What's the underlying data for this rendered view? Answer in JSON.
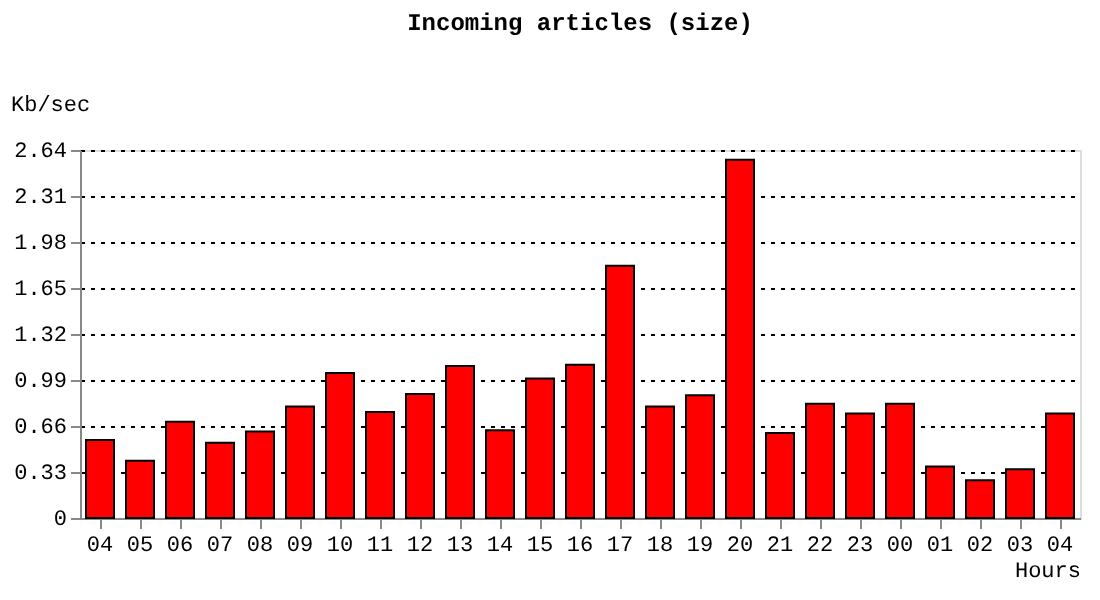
{
  "chart_data": {
    "type": "bar",
    "title": "Incoming articles (size)",
    "xlabel": "Hours",
    "ylabel": "Kb/sec",
    "categories": [
      "04",
      "05",
      "06",
      "07",
      "08",
      "09",
      "10",
      "11",
      "12",
      "13",
      "14",
      "15",
      "16",
      "17",
      "18",
      "19",
      "20",
      "21",
      "22",
      "23",
      "00",
      "01",
      "02",
      "03",
      "04"
    ],
    "series": [
      {
        "color": "#ff0000",
        "values": [
          0.56,
          0.41,
          0.69,
          0.54,
          0.62,
          0.8,
          1.04,
          0.76,
          0.89,
          1.09,
          0.63,
          1.0,
          1.1,
          1.81,
          0.8,
          0.88,
          2.57,
          0.61,
          0.82,
          0.75,
          0.82,
          0.37,
          0.27,
          0.35,
          0.75
        ]
      }
    ],
    "ylim": [
      0,
      2.64
    ],
    "yticks": [
      0,
      0.33,
      0.66,
      0.99,
      1.32,
      1.65,
      1.98,
      2.31,
      2.64
    ],
    "grid": "y"
  }
}
